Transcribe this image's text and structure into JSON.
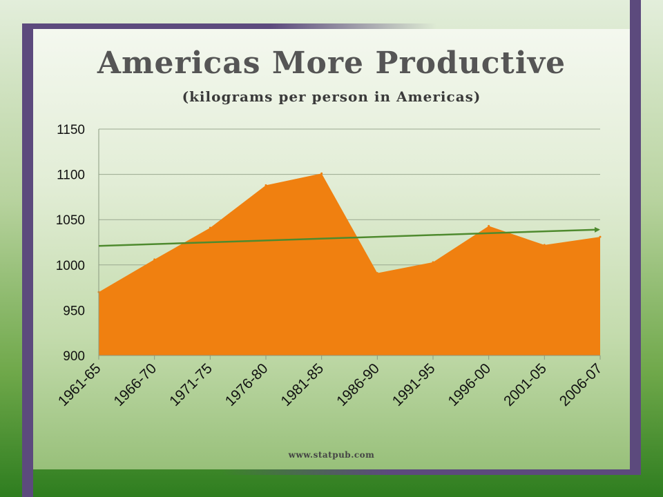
{
  "title": "Americas More Productive",
  "subtitle": "(kilograms per person in Americas)",
  "source": "www.statpub.com",
  "colors": {
    "area": "#f08010",
    "trend": "#4e8a2e",
    "frame": "#5c4a7d",
    "grid": "#9aa890"
  },
  "chart_data": {
    "type": "area",
    "categories": [
      "1961-65",
      "1966-70",
      "1971-75",
      "1976-80",
      "1981-85",
      "1986-90",
      "1991-95",
      "1996-00",
      "2001-05",
      "2006-07"
    ],
    "series": [
      {
        "values": [
          970,
          1006,
          1041,
          1088,
          1101,
          991,
          1003,
          1043,
          1022,
          1031
        ]
      }
    ],
    "trendline": {
      "start": 1021,
      "end": 1039,
      "arrow": true
    },
    "ylim": [
      900,
      1150
    ],
    "yticks": [
      900,
      950,
      1000,
      1050,
      1100,
      1150
    ],
    "grid": true,
    "xlabel": "",
    "ylabel": ""
  }
}
